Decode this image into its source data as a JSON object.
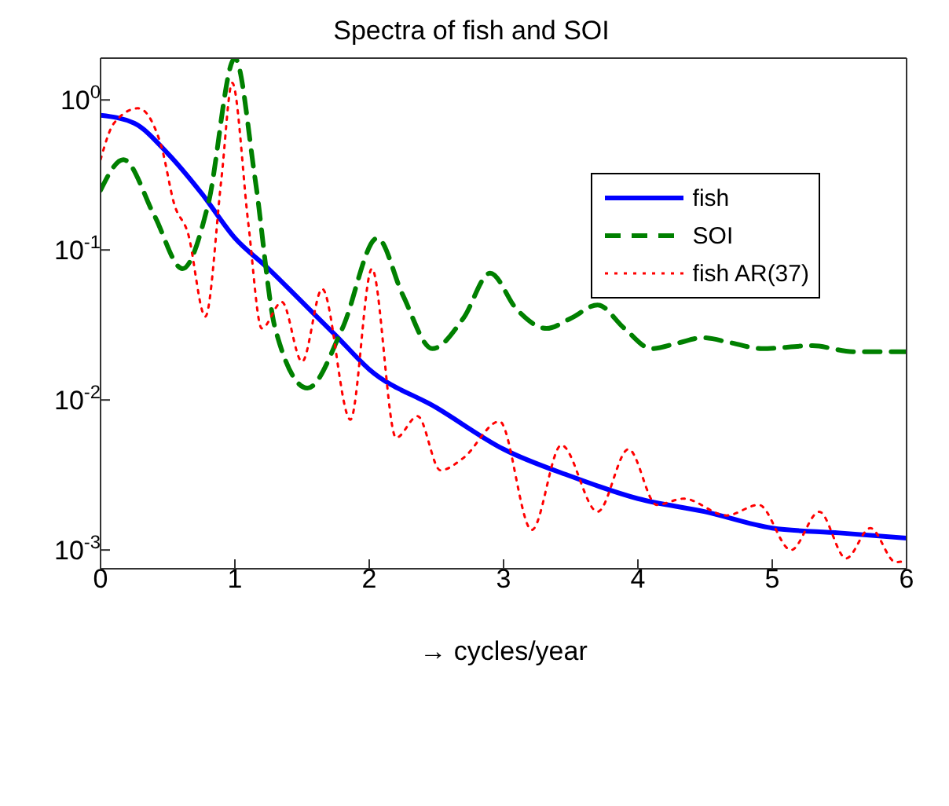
{
  "chart_data": {
    "type": "line",
    "title": "Spectra of fish and SOI",
    "xlabel": "→ cycles/year",
    "xlim": [
      0,
      6
    ],
    "xticks": [
      0,
      1,
      2,
      3,
      4,
      5,
      6
    ],
    "ylim": [
      0.00075,
      1.9
    ],
    "yticks": [
      {
        "value": 0.001,
        "label": "10$^{-3}$"
      },
      {
        "value": 0.01,
        "label": "10$^{-2}$"
      },
      {
        "value": 0.1,
        "label": "10$^{-1}$"
      },
      {
        "value": 1,
        "label": "10$^{0}$"
      }
    ],
    "log": "y",
    "grid": false,
    "legend": "top right",
    "marker": "none",
    "series": [
      {
        "name": "fish",
        "color": "#0000ff",
        "line_style": "solid",
        "x": [
          0,
          0.25,
          0.5,
          0.75,
          1,
          1.25,
          1.5,
          1.75,
          2,
          2.5,
          3,
          3.5,
          4,
          4.5,
          5,
          5.5,
          6
        ],
        "values": [
          0.79,
          0.7,
          0.44,
          0.24,
          0.12,
          0.075,
          0.045,
          0.027,
          0.016,
          0.0089,
          0.0047,
          0.0031,
          0.0022,
          0.0018,
          0.0014,
          0.0013,
          0.0012
        ]
      },
      {
        "name": "SOI",
        "color": "#008000",
        "line_style": "dashed",
        "x": [
          0,
          0.17,
          0.4,
          0.61,
          0.8,
          1.0,
          1.15,
          1.3,
          1.54,
          1.8,
          2.06,
          2.25,
          2.47,
          2.7,
          2.9,
          3.1,
          3.32,
          3.5,
          3.7,
          3.9,
          4.1,
          4.3,
          4.48,
          4.7,
          4.92,
          5.3,
          5.6,
          6
        ],
        "values": [
          0.25,
          0.4,
          0.17,
          0.075,
          0.2,
          1.9,
          0.3,
          0.03,
          0.012,
          0.03,
          0.12,
          0.05,
          0.022,
          0.035,
          0.07,
          0.04,
          0.03,
          0.035,
          0.043,
          0.03,
          0.022,
          0.024,
          0.026,
          0.024,
          0.022,
          0.023,
          0.021,
          0.021
        ]
      },
      {
        "name": "fish AR(37)",
        "color": "#ff0000",
        "line_style": "dotted",
        "x": [
          0,
          0.1,
          0.28,
          0.45,
          0.55,
          0.65,
          0.78,
          0.9,
          0.98,
          1.1,
          1.2,
          1.35,
          1.5,
          1.65,
          1.86,
          2.02,
          2.2,
          2.36,
          2.53,
          2.7,
          2.97,
          3.21,
          3.43,
          3.7,
          3.93,
          4.14,
          4.34,
          4.66,
          4.9,
          5.14,
          5.35,
          5.55,
          5.73,
          5.92,
          6
        ],
        "values": [
          0.4,
          0.7,
          0.88,
          0.5,
          0.2,
          0.13,
          0.036,
          0.3,
          1.3,
          0.15,
          0.03,
          0.045,
          0.018,
          0.055,
          0.0074,
          0.075,
          0.0056,
          0.0078,
          0.0034,
          0.0041,
          0.0072,
          0.00136,
          0.005,
          0.0018,
          0.0047,
          0.002,
          0.0022,
          0.0017,
          0.002,
          0.001,
          0.0018,
          0.00088,
          0.0014,
          0.00083,
          0.00085
        ]
      }
    ]
  }
}
